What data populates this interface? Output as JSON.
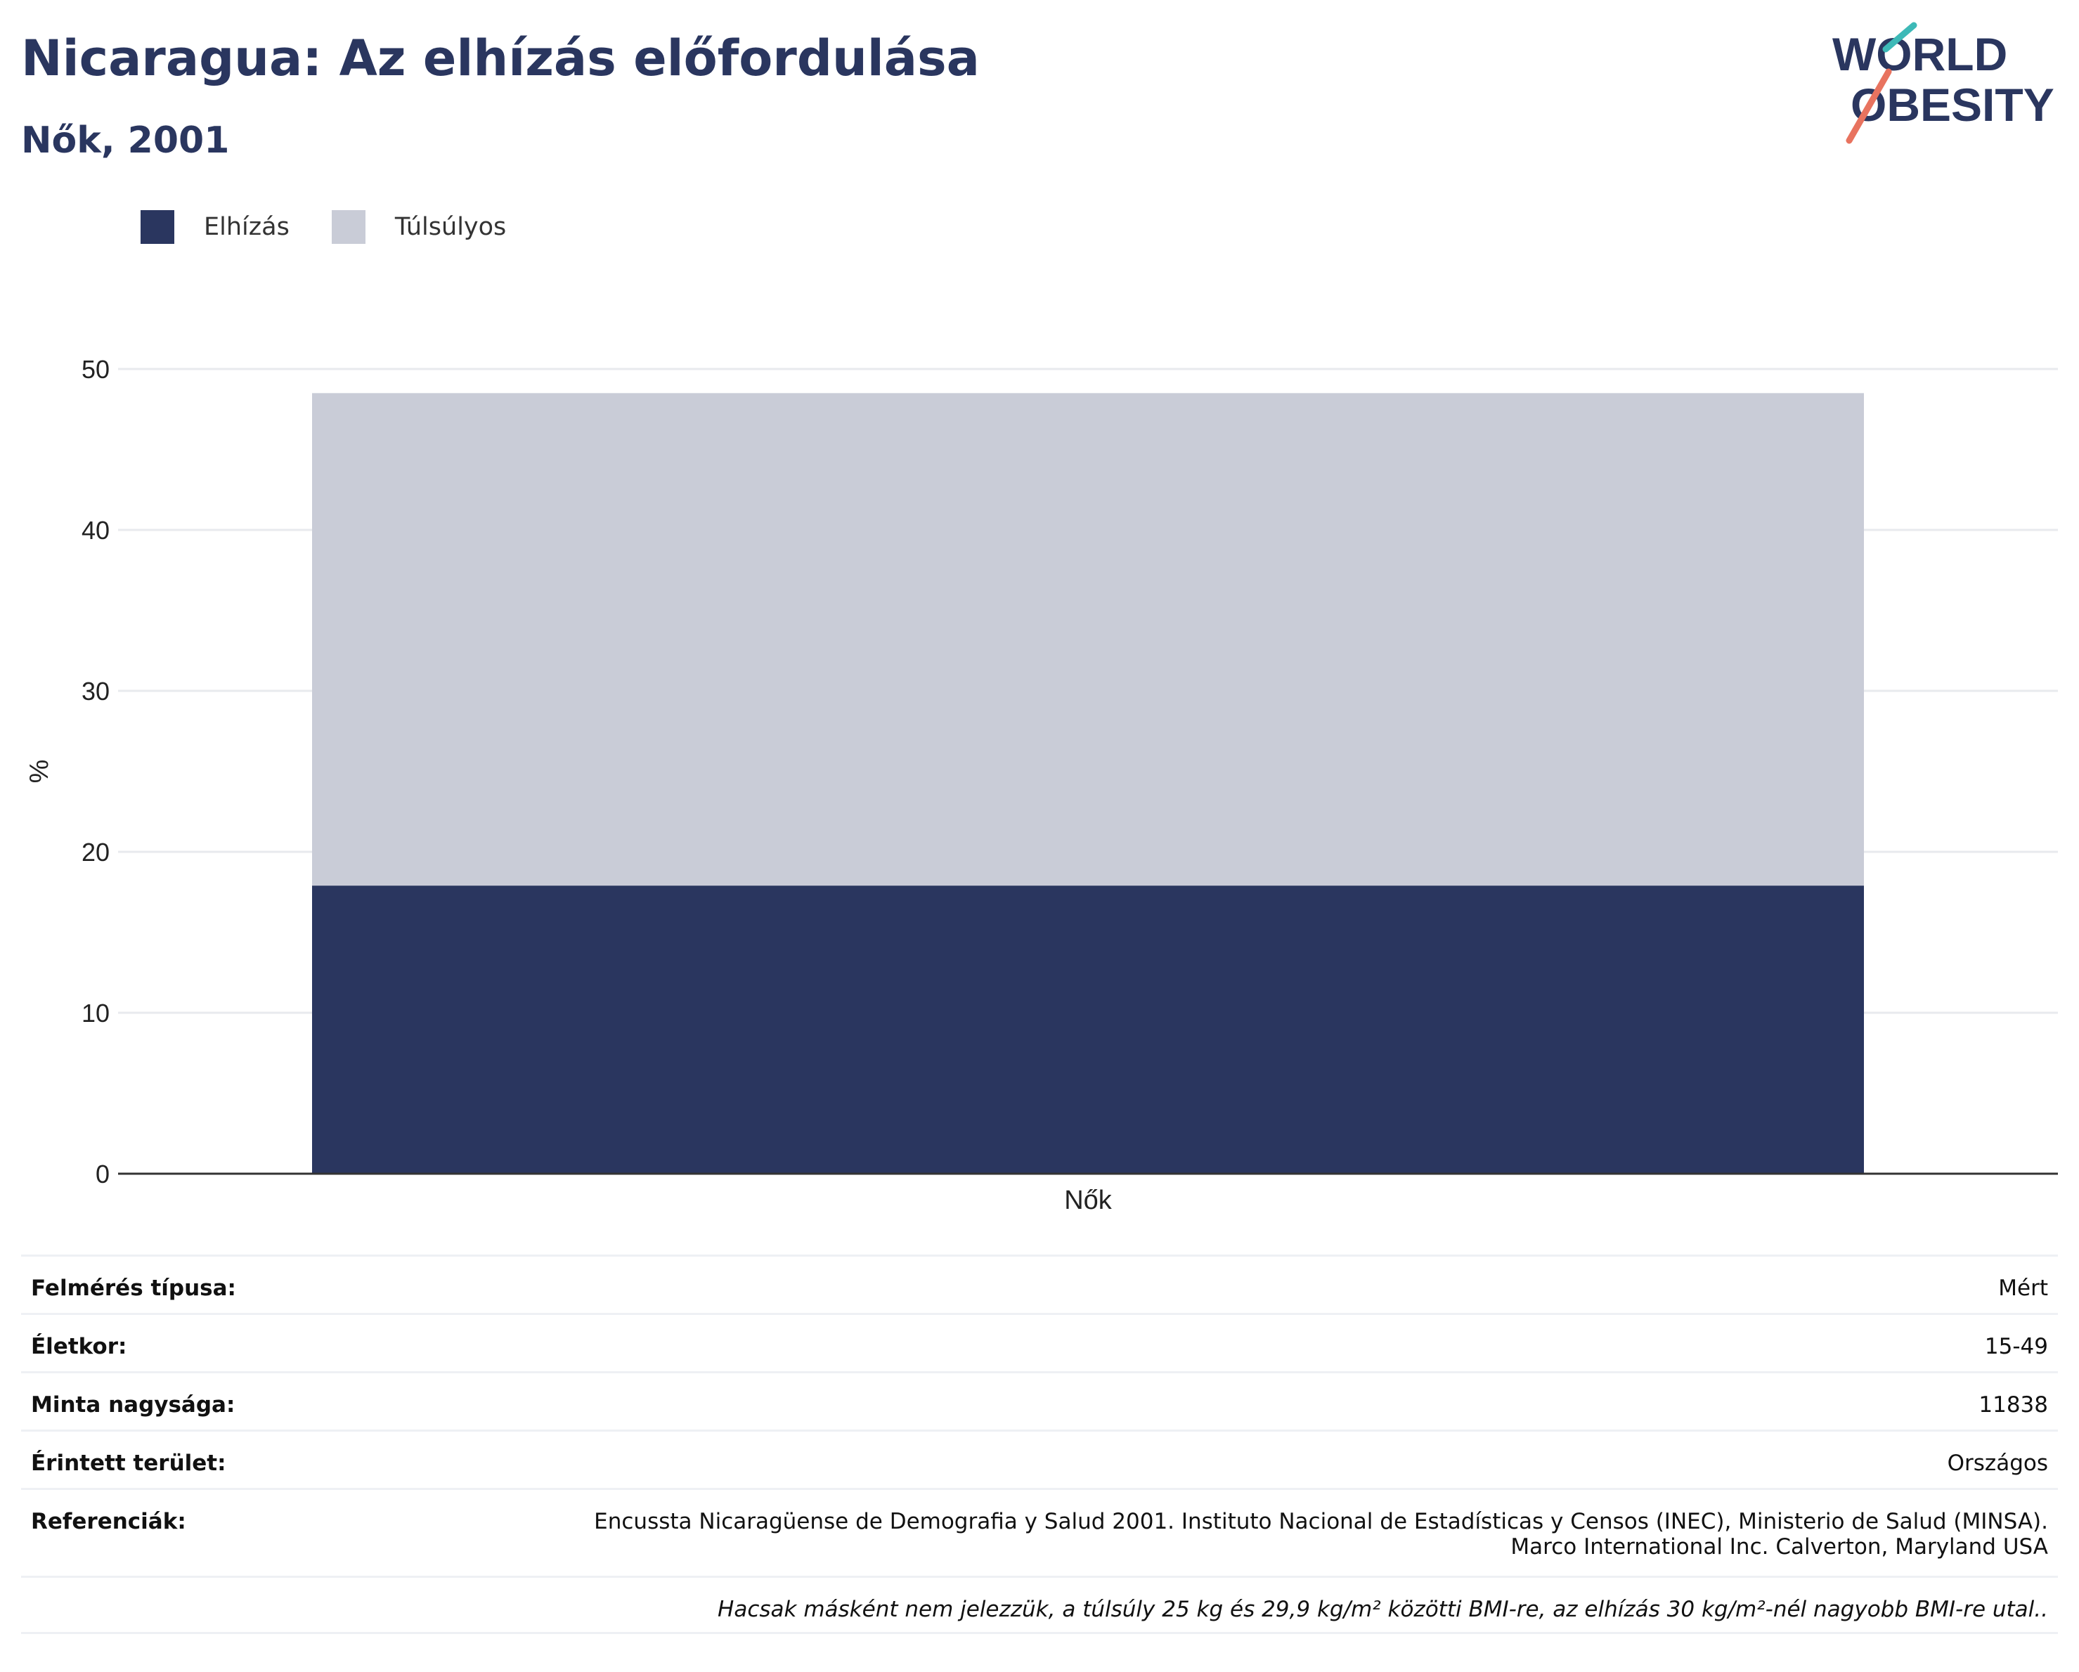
{
  "header": {
    "title": "Nicaragua: Az elhízás előfordulása",
    "subtitle": "Nők, 2001"
  },
  "logo": {
    "line1": "WORLD",
    "line2": "OBESITY"
  },
  "colors": {
    "obesity": "#2a365f",
    "overweight": "#c9ccd7",
    "text": "#2a365f",
    "logo_teal": "#3db9b7",
    "logo_coral": "#e8735f"
  },
  "chart_data": {
    "type": "bar",
    "stacked": true,
    "categories": [
      "Nők"
    ],
    "series": [
      {
        "name": "Elhízás",
        "values": [
          17.9
        ],
        "color": "#2a365f"
      },
      {
        "name": "Túlsúlyos",
        "values": [
          30.6
        ],
        "color": "#c9ccd7"
      }
    ],
    "ylabel": "%",
    "ylim": [
      0,
      50
    ],
    "yticks": [
      0,
      10,
      20,
      30,
      40,
      50
    ],
    "grid": true,
    "legend": "top-left"
  },
  "info": {
    "survey_type": {
      "label": "Felmérés típusa:",
      "value": "Mért"
    },
    "age": {
      "label": "Életkor:",
      "value": "15-49"
    },
    "sample": {
      "label": "Minta nagysága:",
      "value": "11838"
    },
    "area": {
      "label": "Érintett terület:",
      "value": "Országos"
    },
    "refs": {
      "label": "Referenciák:",
      "line1": "Encussta Nicaragüense de Demografia y Salud 2001. Instituto Nacional de Estadísticas y Censos (INEC), Ministerio de Salud (MINSA).",
      "line2": "Marco International Inc. Calverton, Maryland USA"
    },
    "note": "Hacsak másként nem jelezzük, a túlsúly 25 kg és 29,9 kg/m² közötti BMI-re, az elhízás 30 kg/m²-nél nagyobb BMI-re utal.."
  }
}
